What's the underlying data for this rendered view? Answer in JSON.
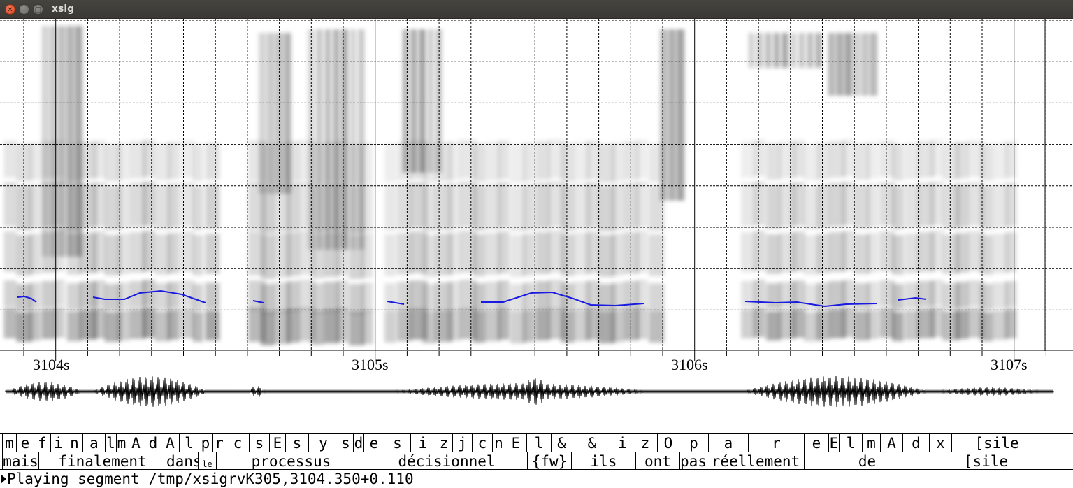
{
  "app": {
    "title": "xsig",
    "close_glyph": "✕",
    "minimize_glyph": "–",
    "maximize_glyph": "□"
  },
  "colors": {
    "titlebar": "#3c3b37",
    "pitch_track": "#1a1ae0",
    "grid": "#000000"
  },
  "time_axis": {
    "ticks": [
      {
        "label": "3104s"
      },
      {
        "label": "3105s"
      },
      {
        "label": "3106s"
      },
      {
        "label": "3107s"
      }
    ]
  },
  "phone_tier": {
    "segments": [
      {
        "label": "m"
      },
      {
        "label": "e"
      },
      {
        "label": "f"
      },
      {
        "label": "i"
      },
      {
        "label": "n"
      },
      {
        "label": "a"
      },
      {
        "label": "l"
      },
      {
        "label": "m"
      },
      {
        "label": "A"
      },
      {
        "label": "d"
      },
      {
        "label": "A"
      },
      {
        "label": "l"
      },
      {
        "label": "p"
      },
      {
        "label": "r"
      },
      {
        "label": "c"
      },
      {
        "label": "s"
      },
      {
        "label": "E"
      },
      {
        "label": "s"
      },
      {
        "label": "y"
      },
      {
        "label": "s"
      },
      {
        "label": "d"
      },
      {
        "label": "e"
      },
      {
        "label": "s"
      },
      {
        "label": "i"
      },
      {
        "label": "z"
      },
      {
        "label": "j"
      },
      {
        "label": "c"
      },
      {
        "label": "n"
      },
      {
        "label": "E"
      },
      {
        "label": "l"
      },
      {
        "label": "&"
      },
      {
        "label": "&"
      },
      {
        "label": "i"
      },
      {
        "label": "z"
      },
      {
        "label": "O"
      },
      {
        "label": "p"
      },
      {
        "label": "a"
      },
      {
        "label": "r"
      },
      {
        "label": "e"
      },
      {
        "label": "E"
      },
      {
        "label": "l"
      },
      {
        "label": "m"
      },
      {
        "label": "A"
      },
      {
        "label": "d"
      },
      {
        "label": "x"
      },
      {
        "label": "[sile"
      }
    ]
  },
  "word_tier": {
    "segments": [
      {
        "label": "mais"
      },
      {
        "label": "finalement"
      },
      {
        "label": "dans"
      },
      {
        "label": "le"
      },
      {
        "label": "processus"
      },
      {
        "label": "décisionnel"
      },
      {
        "label": "{fw}"
      },
      {
        "label": "ils"
      },
      {
        "label": "ont"
      },
      {
        "label": "pas"
      },
      {
        "label": "réellement"
      },
      {
        "label": "de"
      },
      {
        "label": "[sile"
      }
    ]
  },
  "status": {
    "message": "Playing segment /tmp/xsigrvK305,3104.350+0.110"
  }
}
